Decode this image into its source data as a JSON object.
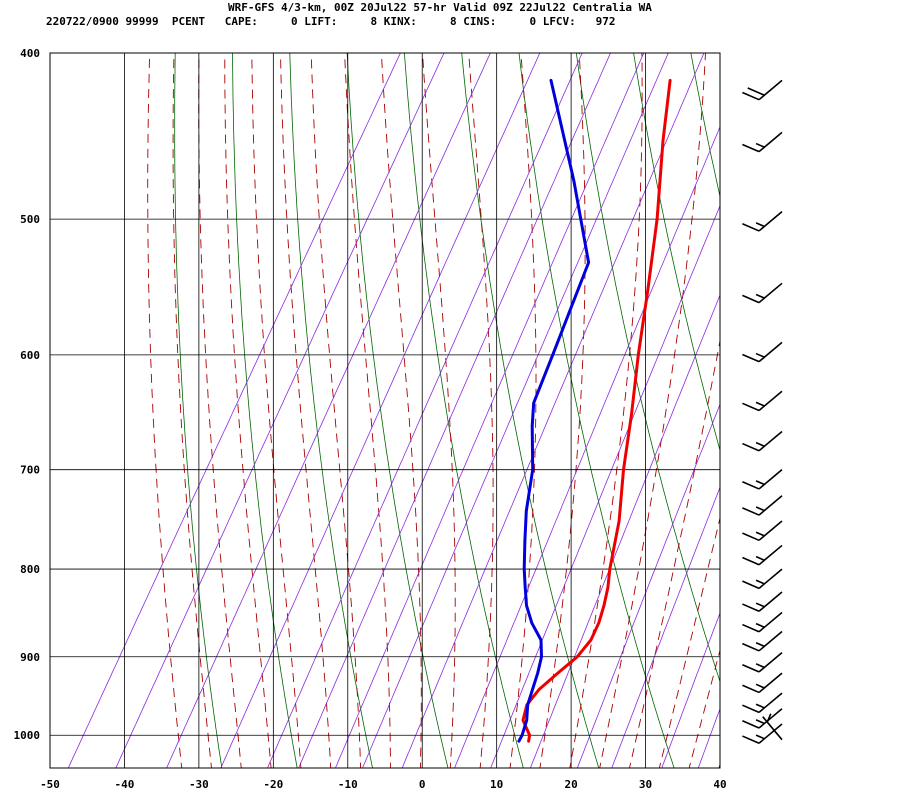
{
  "header": {
    "title": "WRF-GFS 4/3-km, 00Z 20Jul22 57-hr Valid 09Z 22Jul22 Centralia WA",
    "stats": "220722/0900 99999  PCENT   CAPE:     0 LIFT:     8 KINX:     8 CINS:     0 LFCV:   972"
  },
  "colors": {
    "temperature": "#ee0000",
    "dewpoint": "#0000dd",
    "isotherm_grid": "#000000",
    "dry_adiabat": "#006600",
    "moist_adiabat": "#aa0000",
    "mixing_ratio": "#8a2be2"
  },
  "chart_data": {
    "type": "line",
    "title": "",
    "xlabel": "",
    "ylabel": "",
    "skewt": true,
    "xlim": [
      -50,
      40
    ],
    "pressure_range": [
      1045,
      400
    ],
    "x_ticks": [
      -50,
      -40,
      -30,
      -20,
      -10,
      0,
      10,
      20,
      30,
      40
    ],
    "pressure_ticks": [
      400,
      500,
      600,
      700,
      800,
      900,
      1000
    ],
    "grid": true,
    "series": [
      {
        "color_key": "temperature",
        "p": [
          1008,
          1000,
          980,
          960,
          940,
          920,
          900,
          880,
          860,
          840,
          820,
          800,
          750,
          700,
          650,
          600,
          550,
          500,
          450,
          415
        ],
        "t": [
          12.3,
          12.0,
          10.0,
          9.4,
          9.9,
          11.2,
          12.6,
          13.2,
          13.0,
          12.4,
          11.6,
          10.5,
          8.2,
          5.0,
          2.0,
          -1.5,
          -5.0,
          -9.0,
          -14.0,
          -17.5
        ]
      },
      {
        "color_key": "dewpoint",
        "p": [
          1008,
          1000,
          980,
          960,
          940,
          920,
          900,
          880,
          860,
          840,
          820,
          800,
          770,
          740,
          700,
          660,
          640,
          600,
          530,
          475,
          415
        ],
        "t": [
          11.0,
          11.0,
          10.5,
          9.5,
          9.0,
          8.5,
          7.8,
          6.5,
          4.0,
          2.0,
          0.5,
          -1.0,
          -3.0,
          -5.0,
          -7.2,
          -10.5,
          -12.0,
          -13.0,
          -15.0,
          -23.0,
          -33.5
        ]
      }
    ],
    "wind_barbs": [
      {
        "p": 1006,
        "speed_kt": 5,
        "dir_deg": 320
      },
      {
        "p": 985,
        "speed_kt": 15,
        "dir_deg": 230
      },
      {
        "p": 965,
        "speed_kt": 15,
        "dir_deg": 230
      },
      {
        "p": 945,
        "speed_kt": 15,
        "dir_deg": 230
      },
      {
        "p": 920,
        "speed_kt": 15,
        "dir_deg": 230
      },
      {
        "p": 895,
        "speed_kt": 15,
        "dir_deg": 230
      },
      {
        "p": 870,
        "speed_kt": 15,
        "dir_deg": 230
      },
      {
        "p": 848,
        "speed_kt": 15,
        "dir_deg": 230
      },
      {
        "p": 825,
        "speed_kt": 15,
        "dir_deg": 230
      },
      {
        "p": 800,
        "speed_kt": 15,
        "dir_deg": 230
      },
      {
        "p": 775,
        "speed_kt": 15,
        "dir_deg": 230
      },
      {
        "p": 750,
        "speed_kt": 15,
        "dir_deg": 230
      },
      {
        "p": 725,
        "speed_kt": 15,
        "dir_deg": 230
      },
      {
        "p": 700,
        "speed_kt": 15,
        "dir_deg": 230
      },
      {
        "p": 665,
        "speed_kt": 15,
        "dir_deg": 230
      },
      {
        "p": 630,
        "speed_kt": 15,
        "dir_deg": 230
      },
      {
        "p": 590,
        "speed_kt": 15,
        "dir_deg": 230
      },
      {
        "p": 545,
        "speed_kt": 15,
        "dir_deg": 230
      },
      {
        "p": 495,
        "speed_kt": 15,
        "dir_deg": 230
      },
      {
        "p": 445,
        "speed_kt": 15,
        "dir_deg": 230
      },
      {
        "p": 415,
        "speed_kt": 20,
        "dir_deg": 230
      }
    ]
  }
}
